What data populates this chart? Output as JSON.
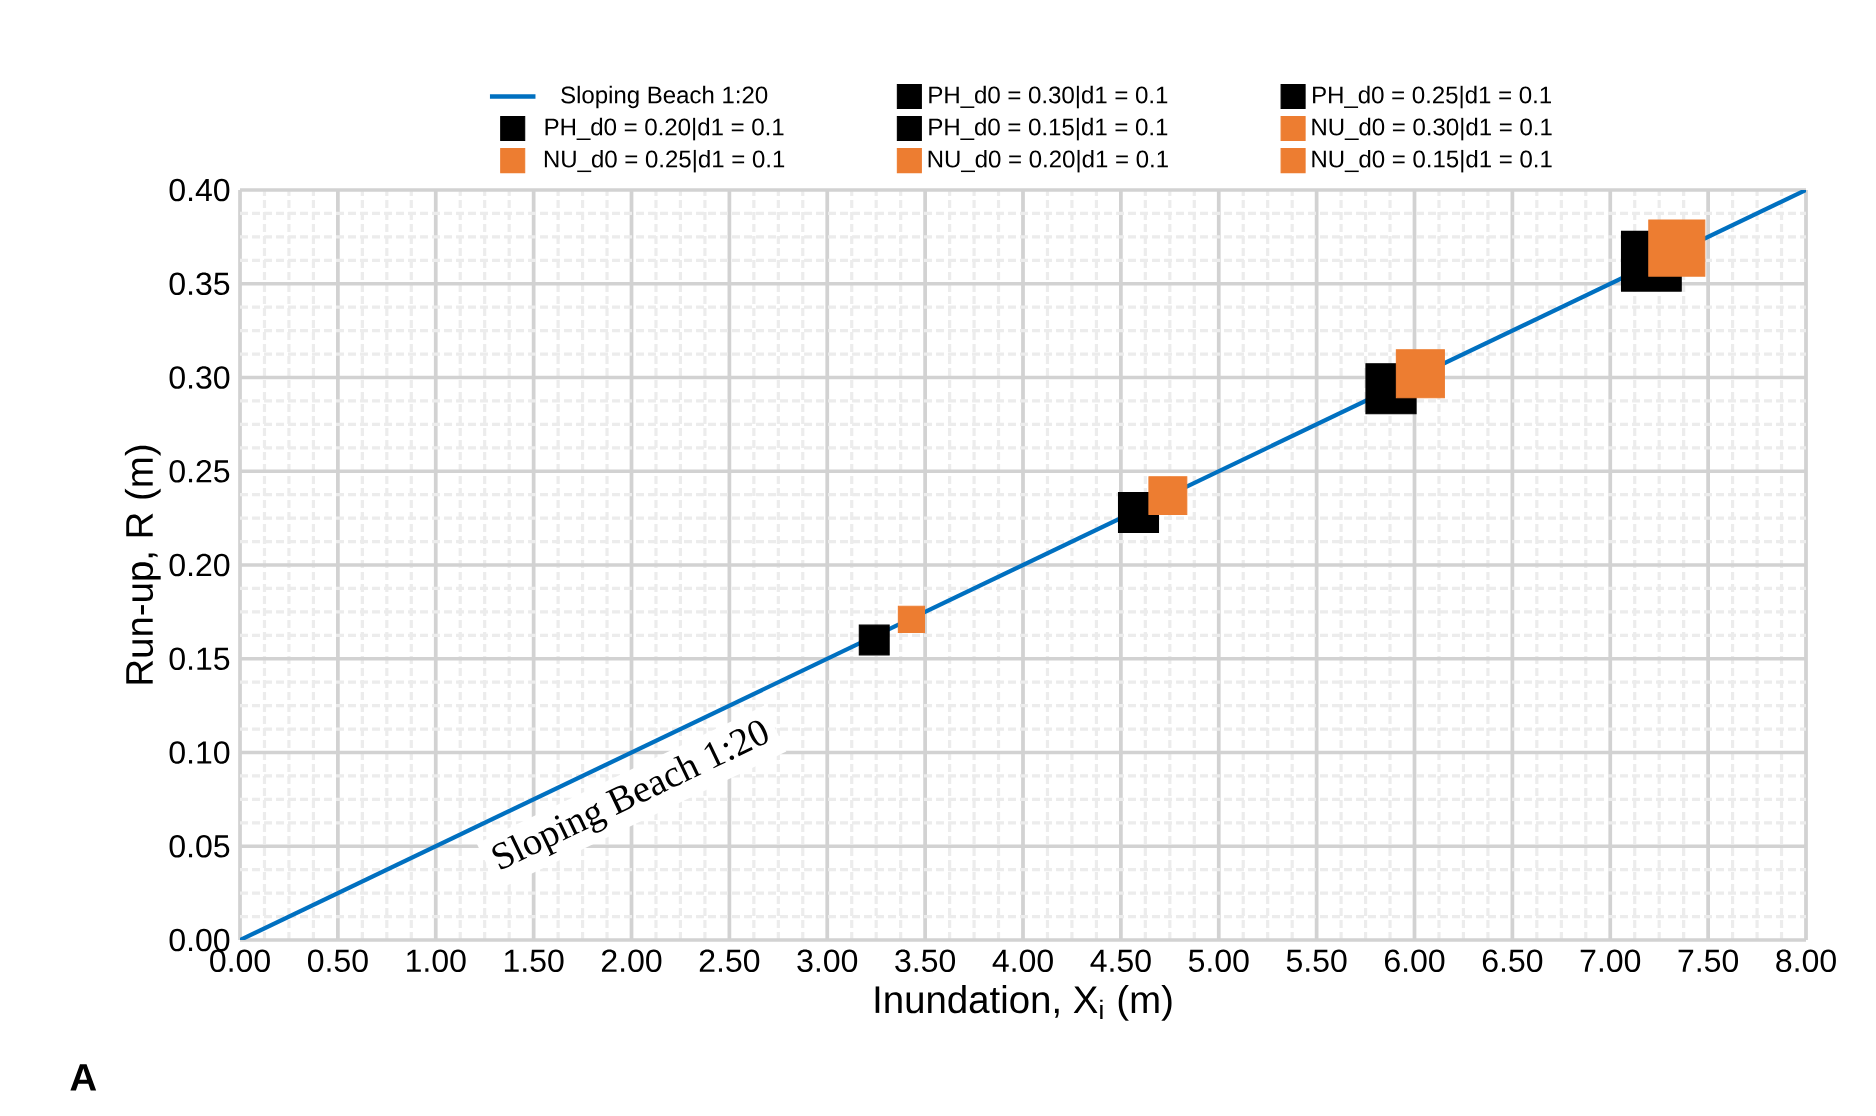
{
  "chart_data": {
    "type": "scatter",
    "xlabel": "Inundation, X$_{i}$ (m)",
    "ylabel": "Run-up, R (m)",
    "xlim": [
      0,
      8
    ],
    "ylim": [
      0,
      0.4
    ],
    "xticks": [
      {
        "value": 0,
        "label": "0.00"
      },
      {
        "value": 0.5,
        "label": "0.50"
      },
      {
        "value": 1,
        "label": "1.00"
      },
      {
        "value": 1.5,
        "label": "1.50"
      },
      {
        "value": 2,
        "label": "2.00"
      },
      {
        "value": 2.5,
        "label": "2.50"
      },
      {
        "value": 3,
        "label": "3.00"
      },
      {
        "value": 3.5,
        "label": "3.50"
      },
      {
        "value": 4,
        "label": "4.00"
      },
      {
        "value": 4.5,
        "label": "4.50"
      },
      {
        "value": 5,
        "label": "5.00"
      },
      {
        "value": 5.5,
        "label": "5.50"
      },
      {
        "value": 6,
        "label": "6.00"
      },
      {
        "value": 6.5,
        "label": "6.50"
      },
      {
        "value": 7,
        "label": "7.00"
      },
      {
        "value": 7.5,
        "label": "7.50"
      },
      {
        "value": 8,
        "label": "8.00"
      }
    ],
    "yticks": [
      {
        "value": 0,
        "label": "0.00"
      },
      {
        "value": 0.05,
        "label": "0.05"
      },
      {
        "value": 0.1,
        "label": "0.10"
      },
      {
        "value": 0.15,
        "label": "0.15"
      },
      {
        "value": 0.2,
        "label": "0.20"
      },
      {
        "value": 0.25,
        "label": "0.25"
      },
      {
        "value": 0.3,
        "label": "0.30"
      },
      {
        "value": 0.35,
        "label": "0.35"
      },
      {
        "value": 0.4,
        "label": "0.40"
      }
    ],
    "grid": true,
    "legend": "top",
    "series": [
      {
        "name": "Sloping Beach 1:20",
        "type": "line",
        "color": "#0070c0",
        "x": [
          0,
          8
        ],
        "values": [
          0,
          0.4
        ]
      },
      {
        "name": "PH_d0 = 0.30|d1 = 0.1",
        "color": "#000000",
        "marker": "square",
        "x": [
          7.21
        ],
        "values": [
          0.362
        ]
      },
      {
        "name": "PH_d0 = 0.25|d1 = 0.1",
        "color": "#000000",
        "marker": "square",
        "x": [
          5.88
        ],
        "values": [
          0.294
        ]
      },
      {
        "name": "PH_d0 = 0.20|d1 = 0.1",
        "color": "#000000",
        "marker": "square",
        "x": [
          4.59
        ],
        "values": [
          0.228
        ]
      },
      {
        "name": "PH_d0 = 0.15|d1 = 0.1",
        "color": "#000000",
        "marker": "square",
        "x": [
          3.24
        ],
        "values": [
          0.16
        ]
      },
      {
        "name": "NU_d0 = 0.30|d1 = 0.1",
        "color": "#ed7d31",
        "marker": "square",
        "x": [
          7.34
        ],
        "values": [
          0.369
        ]
      },
      {
        "name": "NU_d0 = 0.25|d1 = 0.1",
        "color": "#ed7d31",
        "marker": "square",
        "x": [
          6.03
        ],
        "values": [
          0.302
        ]
      },
      {
        "name": "NU_d0 = 0.20|d1 = 0.1",
        "color": "#ed7d31",
        "marker": "square",
        "x": [
          4.74
        ],
        "values": [
          0.237
        ]
      },
      {
        "name": "NU_d0 = 0.15|d1 = 0.1",
        "color": "#ed7d31",
        "marker": "square",
        "x": [
          3.43
        ],
        "values": [
          0.171
        ]
      }
    ],
    "annotations": [
      "Sloping Beach 1:20",
      "A"
    ]
  }
}
